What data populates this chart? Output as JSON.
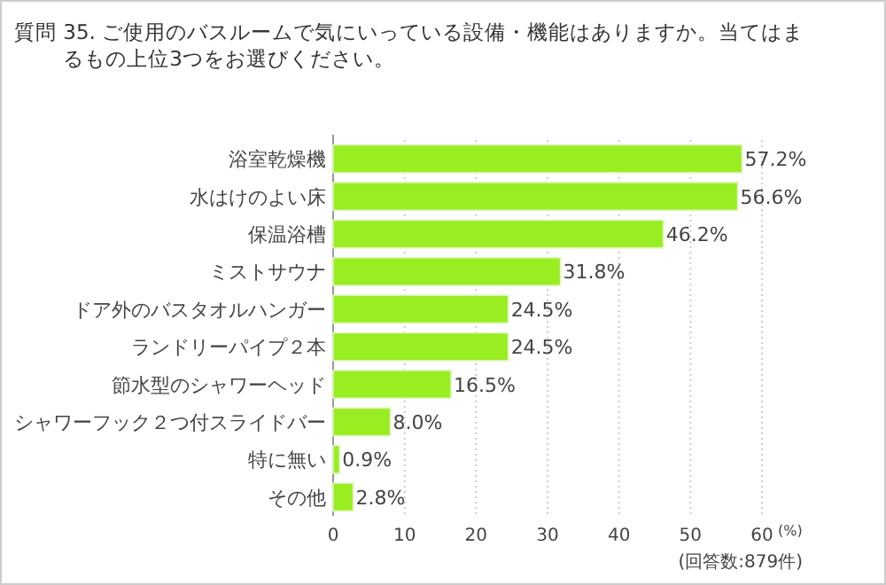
{
  "chart_data": {
    "type": "bar",
    "orientation": "horizontal",
    "title": "質問 35. ご使用のバスルームで気にいっている設備・機能はありますか。当てはまるもの上位3つをお選びください。",
    "xlabel": "(%)",
    "annotations": [
      "(回答数:879件)"
    ],
    "categories": [
      "浴室乾燥機",
      "水はけのよい床",
      "保温浴槽",
      "ミストサウナ",
      "ドア外のバスタオルハンガー",
      "ランドリーパイプ２本",
      "節水型のシャワーヘッド",
      "シャワーフック２つ付スライドバー",
      "特に無い",
      "その他"
    ],
    "values": [
      57.2,
      56.6,
      46.2,
      31.8,
      24.5,
      24.5,
      16.5,
      8.0,
      0.9,
      2.8
    ],
    "value_labels": [
      "57.2%",
      "56.6%",
      "46.2%",
      "31.8%",
      "24.5%",
      "24.5%",
      "16.5%",
      "8.0%",
      "0.9%",
      "2.8%"
    ],
    "color": "#99ee22",
    "xlim": [
      0,
      60
    ],
    "xticks": [
      0,
      10,
      20,
      30,
      40,
      50,
      60
    ],
    "grid": "x"
  }
}
